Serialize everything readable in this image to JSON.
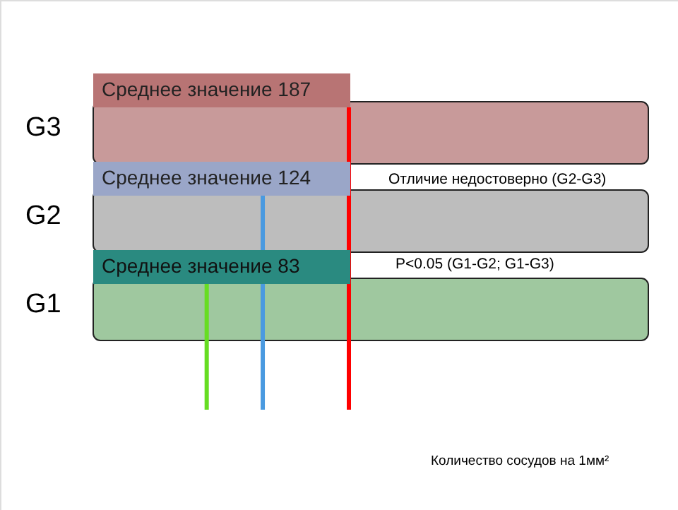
{
  "chart_data": {
    "type": "other",
    "categories": [
      "G3",
      "G2",
      "G1"
    ],
    "values": [
      187,
      124,
      83
    ],
    "colors": [
      "#ff0000",
      "#4a9ae0",
      "#66dd22"
    ],
    "value_labels": [
      "Среднее значение 187",
      "Среднее значение 124",
      "Среднее значение 83"
    ],
    "xlabel": "Количество сосудов на 1мм²",
    "annotations": [
      "Отличие недостоверно (G2-G3)",
      "P<0.05 (G1-G2; G1-G3)"
    ]
  }
}
